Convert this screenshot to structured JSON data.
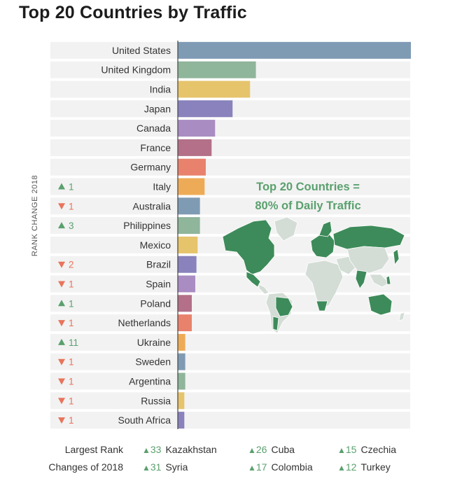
{
  "title": "Top 20 Countries by Traffic",
  "rank_axis_label": "RANK CHANGE 2018",
  "overlay": {
    "line1": "Top 20 Countries =",
    "line2": "80% of Daily Traffic"
  },
  "colors": {
    "up": "#5aa06e",
    "down": "#e8745b",
    "row_band": "#f2f2f2",
    "map_highlight": "#3d8b5a",
    "map_other": "#d3ddd6"
  },
  "chart_data": {
    "type": "bar",
    "orientation": "horizontal",
    "categories": [
      "United States",
      "United Kingdom",
      "India",
      "Japan",
      "Canada",
      "France",
      "Germany",
      "Italy",
      "Australia",
      "Philippines",
      "Mexico",
      "Brazil",
      "Spain",
      "Poland",
      "Netherlands",
      "Ukraine",
      "Sweden",
      "Argentina",
      "Russia",
      "South Africa"
    ],
    "values": [
      100,
      33.5,
      31,
      23.5,
      16,
      14.5,
      12,
      11.5,
      9.5,
      9.5,
      8.5,
      8,
      7.5,
      6,
      6,
      3.2,
      3.2,
      3.2,
      2.8,
      2.8
    ],
    "bar_colors": [
      "#7f9bb4",
      "#8fb59b",
      "#e6c46c",
      "#8982bc",
      "#a98cc2",
      "#b37088",
      "#e8826c",
      "#eeab57",
      "#7f9bb4",
      "#8fb59b",
      "#e6c46c",
      "#8982bc",
      "#a98cc2",
      "#b37088",
      "#e8826c",
      "#eeab57",
      "#7f9bb4",
      "#8fb59b",
      "#e6c46c",
      "#8982bc"
    ],
    "rank_changes": [
      {
        "dir": "",
        "value": ""
      },
      {
        "dir": "",
        "value": ""
      },
      {
        "dir": "",
        "value": ""
      },
      {
        "dir": "",
        "value": ""
      },
      {
        "dir": "",
        "value": ""
      },
      {
        "dir": "",
        "value": ""
      },
      {
        "dir": "",
        "value": ""
      },
      {
        "dir": "up",
        "value": "1"
      },
      {
        "dir": "down",
        "value": "1"
      },
      {
        "dir": "up",
        "value": "3"
      },
      {
        "dir": "",
        "value": ""
      },
      {
        "dir": "down",
        "value": "2"
      },
      {
        "dir": "down",
        "value": "1"
      },
      {
        "dir": "up",
        "value": "1"
      },
      {
        "dir": "down",
        "value": "1"
      },
      {
        "dir": "up",
        "value": "11"
      },
      {
        "dir": "down",
        "value": "1"
      },
      {
        "dir": "down",
        "value": "1"
      },
      {
        "dir": "down",
        "value": "1"
      },
      {
        "dir": "down",
        "value": "1"
      }
    ],
    "xlim": [
      0,
      100
    ],
    "grid": false
  },
  "footer": {
    "title_line1": "Largest Rank",
    "title_line2": "Changes of 2018",
    "items": [
      {
        "value": "33",
        "country": "Kazakhstan"
      },
      {
        "value": "26",
        "country": "Cuba"
      },
      {
        "value": "15",
        "country": "Czechia"
      },
      {
        "value": "31",
        "country": "Syria"
      },
      {
        "value": "17",
        "country": "Colombia"
      },
      {
        "value": "12",
        "country": "Turkey"
      }
    ]
  }
}
